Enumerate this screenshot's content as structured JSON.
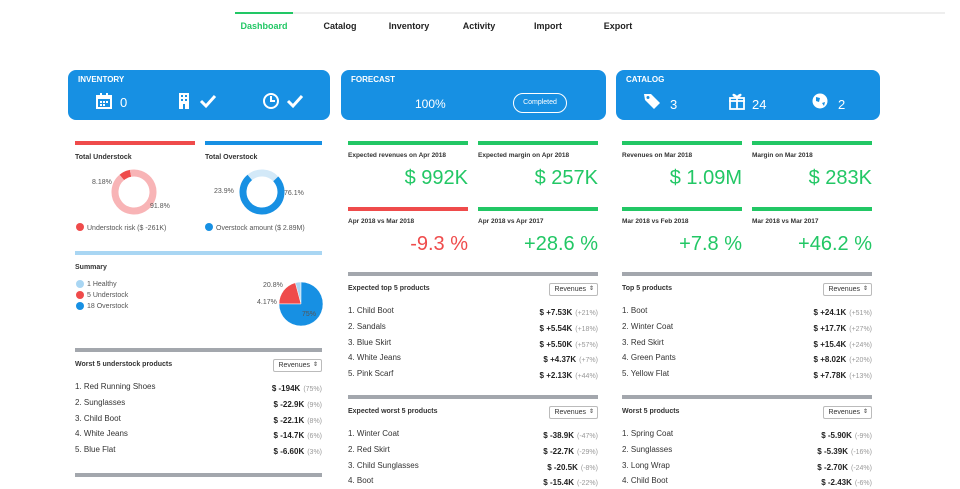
{
  "nav": {
    "items": [
      "Dashboard",
      "Catalog",
      "Inventory",
      "Activity",
      "Import",
      "Export"
    ],
    "active": 0
  },
  "inventory": {
    "title": "INVENTORY",
    "count": "0"
  },
  "forecast": {
    "title": "FORECAST",
    "progress": {
      "value": 100,
      "label": "100%"
    },
    "status": "Completed"
  },
  "catalog": {
    "title": "CATALOG",
    "stats": [
      "3",
      "24",
      "2"
    ]
  },
  "understock": {
    "title": "Total Understock",
    "values": [
      8.18,
      91.8
    ],
    "value_labels": [
      "8.18%",
      "91.8%"
    ],
    "legend": "Understock risk ($ -261K)"
  },
  "overstock": {
    "title": "Total Overstock",
    "values": [
      23.9,
      76.1
    ],
    "value_labels": [
      "23.9%",
      "76.1%"
    ],
    "legend": "Overstock amount ($ 2.89M)"
  },
  "summary": {
    "title": "Summary",
    "legend": [
      "1 Healthy",
      "5 Understock",
      "18 Overstock"
    ],
    "values": [
      4.17,
      20.8,
      75
    ],
    "value_labels": [
      "4.17%",
      "20.8%",
      "75%"
    ]
  },
  "worst_understock": {
    "title": "Worst 5 understock products",
    "sort": "Revenues",
    "rows": [
      {
        "label": "1. Red Running Shoes",
        "value": "$ -194K",
        "share": "(75%)"
      },
      {
        "label": "2. Sunglasses",
        "value": "$ -22.9K",
        "share": "(9%)"
      },
      {
        "label": "3. Child Boot",
        "value": "$ -22.1K",
        "share": "(8%)"
      },
      {
        "label": "4. White Jeans",
        "value": "$ -14.7K",
        "share": "(6%)"
      },
      {
        "label": "5. Blue Flat",
        "value": "$ -6.60K",
        "share": "(3%)"
      }
    ]
  },
  "forecast_kpis": [
    {
      "label": "Expected revenues on Apr 2018",
      "value": "$ 992K"
    },
    {
      "label": "Expected margin on Apr 2018",
      "value": "$ 257K"
    }
  ],
  "forecast_changes": [
    {
      "label": "Apr 2018 vs Mar 2018",
      "value": "-9.3 %"
    },
    {
      "label": "Apr 2018 vs Apr 2017",
      "value": "+28.6 %"
    }
  ],
  "forecast_top": {
    "title": "Expected top 5 products",
    "sort": "Revenues",
    "rows": [
      {
        "label": "1. Child Boot",
        "value": "$ +7.53K",
        "share": "(+21%)"
      },
      {
        "label": "2. Sandals",
        "value": "$ +5.54K",
        "share": "(+18%)"
      },
      {
        "label": "3. Blue Skirt",
        "value": "$ +5.50K",
        "share": "(+57%)"
      },
      {
        "label": "4. White Jeans",
        "value": "$ +4.37K",
        "share": "(+7%)"
      },
      {
        "label": "5. Pink Scarf",
        "value": "$ +2.13K",
        "share": "(+44%)"
      }
    ]
  },
  "forecast_worst": {
    "title": "Expected worst 5 products",
    "sort": "Revenues",
    "rows": [
      {
        "label": "1. Winter Coat",
        "value": "$ -38.9K",
        "share": "(-47%)"
      },
      {
        "label": "2. Red Skirt",
        "value": "$ -22.7K",
        "share": "(-29%)"
      },
      {
        "label": "3. Child Sunglasses",
        "value": "$ -20.5K",
        "share": "(-8%)"
      },
      {
        "label": "4. Boot",
        "value": "$ -15.4K",
        "share": "(-22%)"
      }
    ]
  },
  "catalog_kpis": [
    {
      "label": "Revenues on Mar 2018",
      "value": "$ 1.09M"
    },
    {
      "label": "Margin on Mar 2018",
      "value": "$ 283K"
    }
  ],
  "catalog_changes": [
    {
      "label": "Mar 2018 vs Feb 2018",
      "value": "+7.8 %"
    },
    {
      "label": "Mar 2018 vs Mar 2017",
      "value": "+46.2 %"
    }
  ],
  "catalog_top": {
    "title": "Top 5 products",
    "sort": "Revenues",
    "rows": [
      {
        "label": "1. Boot",
        "value": "$ +24.1K",
        "share": "(+51%)"
      },
      {
        "label": "2. Winter Coat",
        "value": "$ +17.7K",
        "share": "(+27%)"
      },
      {
        "label": "3. Red Skirt",
        "value": "$ +15.4K",
        "share": "(+24%)"
      },
      {
        "label": "4. Green Pants",
        "value": "$ +8.02K",
        "share": "(+20%)"
      },
      {
        "label": "5. Yellow Flat",
        "value": "$ +7.78K",
        "share": "(+13%)"
      }
    ]
  },
  "catalog_worst": {
    "title": "Worst 5 products",
    "sort": "Revenues",
    "rows": [
      {
        "label": "1. Spring Coat",
        "value": "$ -5.90K",
        "share": "(-9%)"
      },
      {
        "label": "2. Sunglasses",
        "value": "$ -5.39K",
        "share": "(-16%)"
      },
      {
        "label": "3. Long Wrap",
        "value": "$ -2.70K",
        "share": "(-24%)"
      },
      {
        "label": "4. Child Boot",
        "value": "$ -2.43K",
        "share": "(-6%)"
      }
    ]
  }
}
